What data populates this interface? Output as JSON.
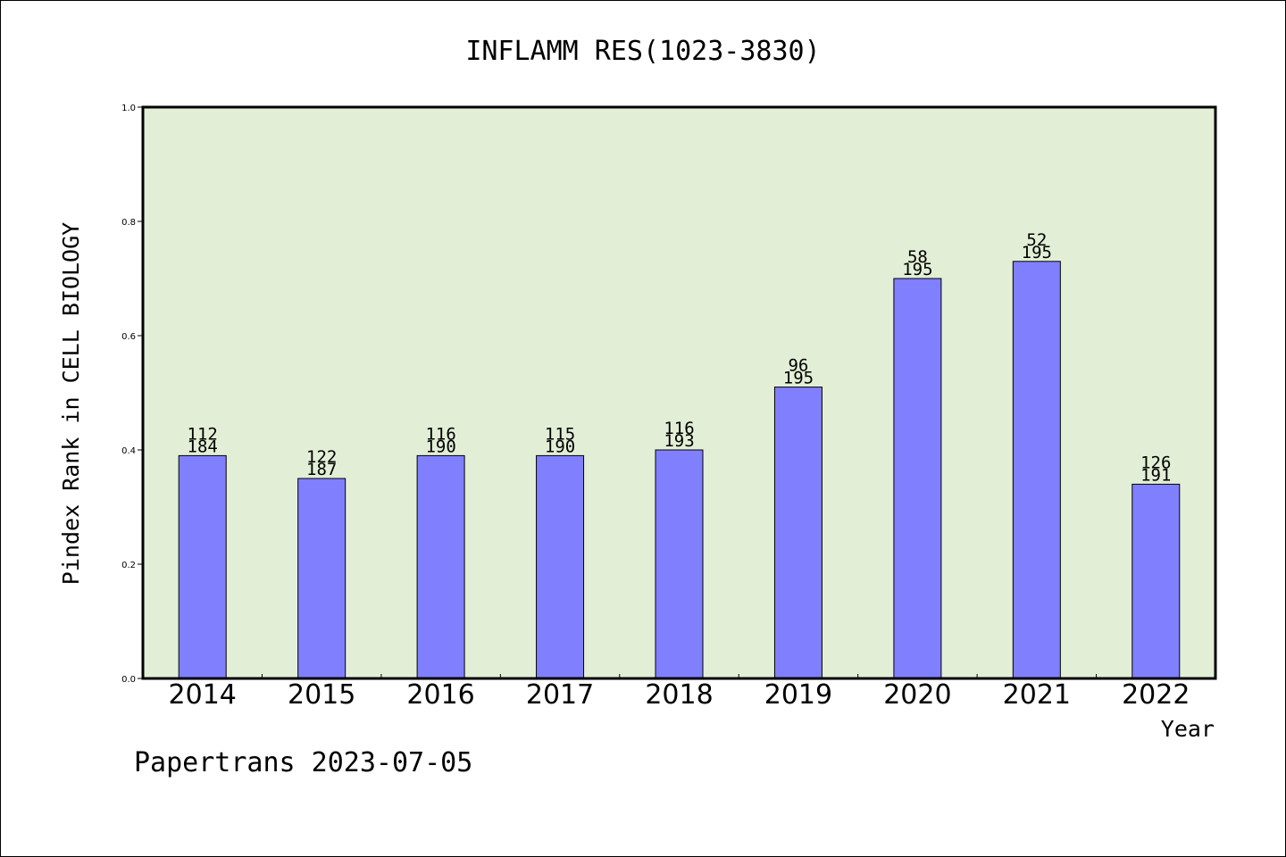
{
  "chart_data": {
    "type": "bar",
    "title": "INFLAMM RES(1023-3830)",
    "xlabel": "Year",
    "ylabel": "Pindex Rank in CELL BIOLOGY",
    "ylim": [
      0,
      1.0
    ],
    "yticks": [
      "0.0",
      "0.2",
      "0.4",
      "0.6",
      "0.8",
      "1.0"
    ],
    "categories": [
      "2014",
      "2015",
      "2016",
      "2017",
      "2018",
      "2019",
      "2020",
      "2021",
      "2022"
    ],
    "values": [
      0.39,
      0.35,
      0.39,
      0.39,
      0.4,
      0.51,
      0.7,
      0.73,
      0.34
    ],
    "rank_labels": [
      "112",
      "122",
      "116",
      "115",
      "116",
      "96",
      "58",
      "52",
      "126"
    ],
    "total_labels": [
      "184",
      "187",
      "190",
      "190",
      "193",
      "195",
      "195",
      "195",
      "191"
    ],
    "grid": false,
    "colors": {
      "plot_background": "#e2efd6",
      "bar": "#8080ff"
    }
  },
  "footer": "Papertrans 2023-07-05"
}
